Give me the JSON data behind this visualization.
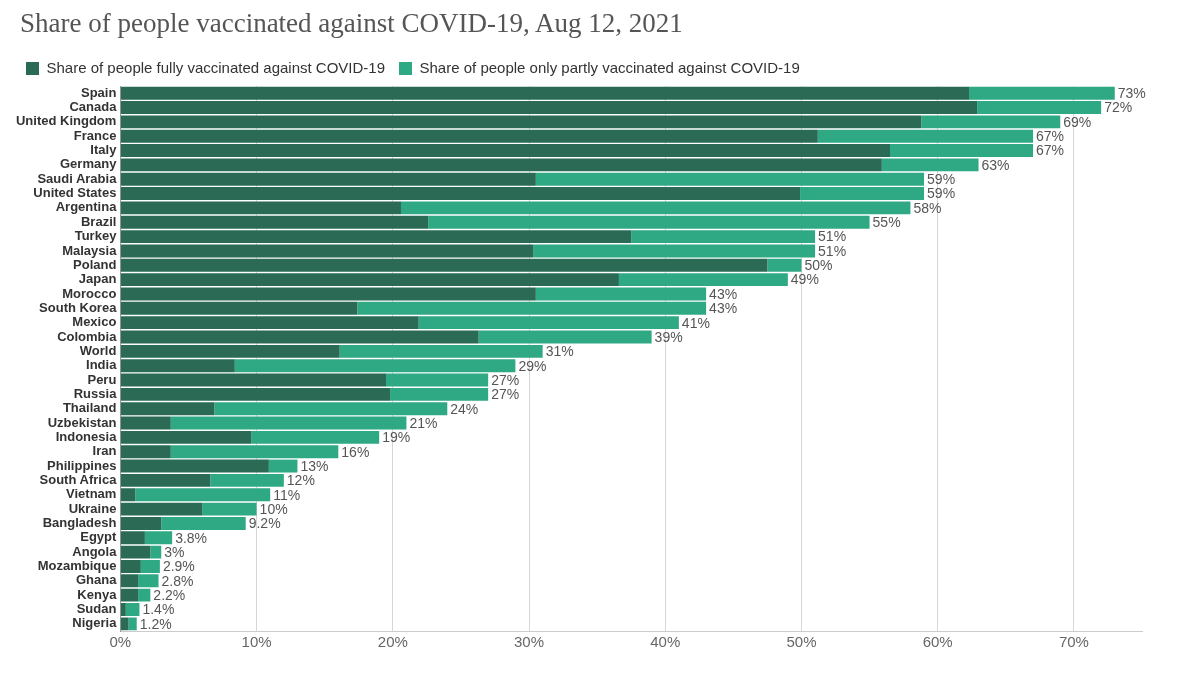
{
  "chart_data": {
    "type": "bar",
    "title": "Share of people vaccinated against COVID-19, Aug 12, 2021",
    "orientation": "horizontal",
    "stacked": true,
    "legend": "top left",
    "grid": "x",
    "categories": [
      "Spain",
      "Canada",
      "United Kingdom",
      "France",
      "Italy",
      "Germany",
      "Saudi Arabia",
      "United States",
      "Argentina",
      "Brazil",
      "Turkey",
      "Malaysia",
      "Poland",
      "Japan",
      "Morocco",
      "South Korea",
      "Mexico",
      "Colombia",
      "World",
      "India",
      "Peru",
      "Russia",
      "Thailand",
      "Uzbekistan",
      "Indonesia",
      "Iran",
      "Philippines",
      "South Africa",
      "Vietnam",
      "Ukraine",
      "Bangladesh",
      "Egypt",
      "Angola",
      "Mozambique",
      "Ghana",
      "Kenya",
      "Sudan",
      "Nigeria"
    ],
    "series": [
      {
        "name": "Share of people fully vaccinated against COVID-19",
        "color": "#2b6b55",
        "values": [
          62.3,
          62.9,
          58.8,
          51.2,
          56.5,
          55.9,
          30.5,
          49.9,
          20.6,
          22.6,
          37.5,
          30.3,
          47.5,
          36.6,
          30.5,
          17.4,
          21.9,
          26.3,
          16.1,
          8.4,
          19.5,
          19.8,
          6.9,
          3.7,
          9.6,
          3.7,
          10.9,
          6.6,
          1.1,
          6.0,
          3.0,
          1.8,
          2.2,
          1.5,
          1.3,
          1.3,
          0.4,
          0.6
        ]
      },
      {
        "name": "Share of people only partly vaccinated against COVID-19",
        "color": "#2fa884",
        "values": [
          10.7,
          9.1,
          10.2,
          15.8,
          10.5,
          7.1,
          28.5,
          9.1,
          37.4,
          32.4,
          13.5,
          20.7,
          2.5,
          12.4,
          12.5,
          25.6,
          19.1,
          12.7,
          14.9,
          20.6,
          7.5,
          7.2,
          17.1,
          17.3,
          9.4,
          12.3,
          2.1,
          5.4,
          9.9,
          4.0,
          6.2,
          2.0,
          0.8,
          1.4,
          1.5,
          0.9,
          1.0,
          0.6
        ]
      }
    ],
    "totals": [
      "73%",
      "72%",
      "69%",
      "67%",
      "67%",
      "63%",
      "59%",
      "59%",
      "58%",
      "55%",
      "51%",
      "51%",
      "50%",
      "49%",
      "43%",
      "43%",
      "41%",
      "39%",
      "31%",
      "29%",
      "27%",
      "27%",
      "24%",
      "21%",
      "19%",
      "16%",
      "13%",
      "12%",
      "11%",
      "10%",
      "9.2%",
      "3.8%",
      "3%",
      "2.9%",
      "2.8%",
      "2.2%",
      "1.4%",
      "1.2%"
    ],
    "xlim": [
      0,
      75
    ],
    "xticks": [
      {
        "value": 0,
        "label": "0%"
      },
      {
        "value": 10,
        "label": "10%"
      },
      {
        "value": 20,
        "label": "20%"
      },
      {
        "value": 30,
        "label": "30%"
      },
      {
        "value": 40,
        "label": "40%"
      },
      {
        "value": 50,
        "label": "50%"
      },
      {
        "value": 60,
        "label": "60%"
      },
      {
        "value": 70,
        "label": "70%"
      }
    ]
  }
}
